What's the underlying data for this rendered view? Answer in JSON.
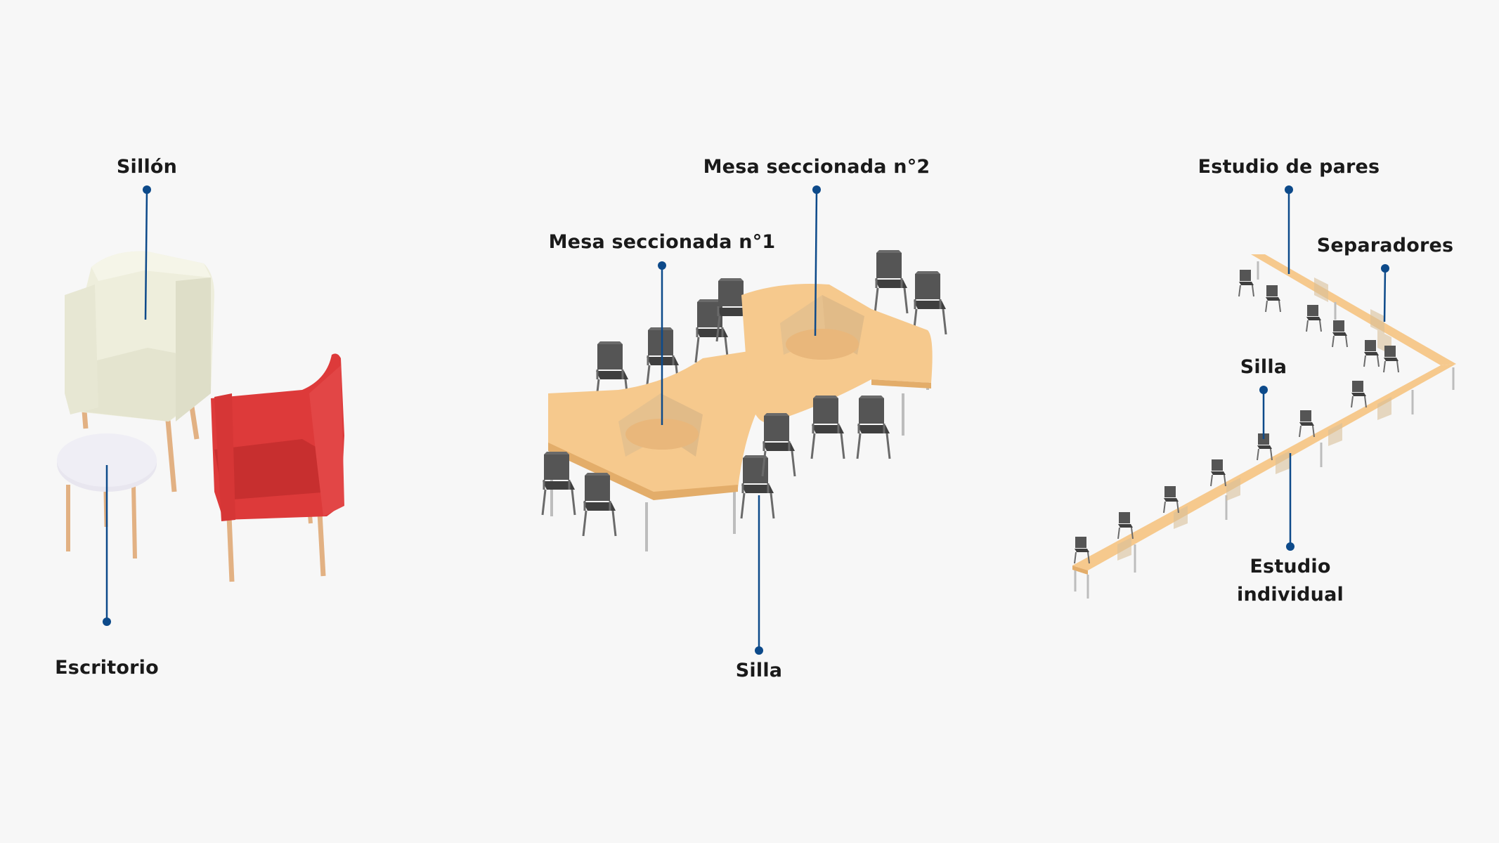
{
  "labels": {
    "sillon": "Sillón",
    "escritorio": "Escritorio",
    "mesa_1": "Mesa seccionada n°1",
    "mesa_2": "Mesa seccionada n°2",
    "silla_center": "Silla",
    "estudio_pares": "Estudio de pares",
    "separadores": "Separadores",
    "silla_right": "Silla",
    "estudio_individual_1": "Estudio",
    "estudio_individual_2": "individual"
  },
  "colors": {
    "leader": "#0d4a8a",
    "table_wood": "#f6c98d",
    "table_wood_dark": "#e3ad6a",
    "chair": "#4b4b4b",
    "armchair_cream": "#eeeedc",
    "armchair_red": "#dc3b3b",
    "side_table": "#ecebf3",
    "leg_wood": "#e7b889"
  }
}
